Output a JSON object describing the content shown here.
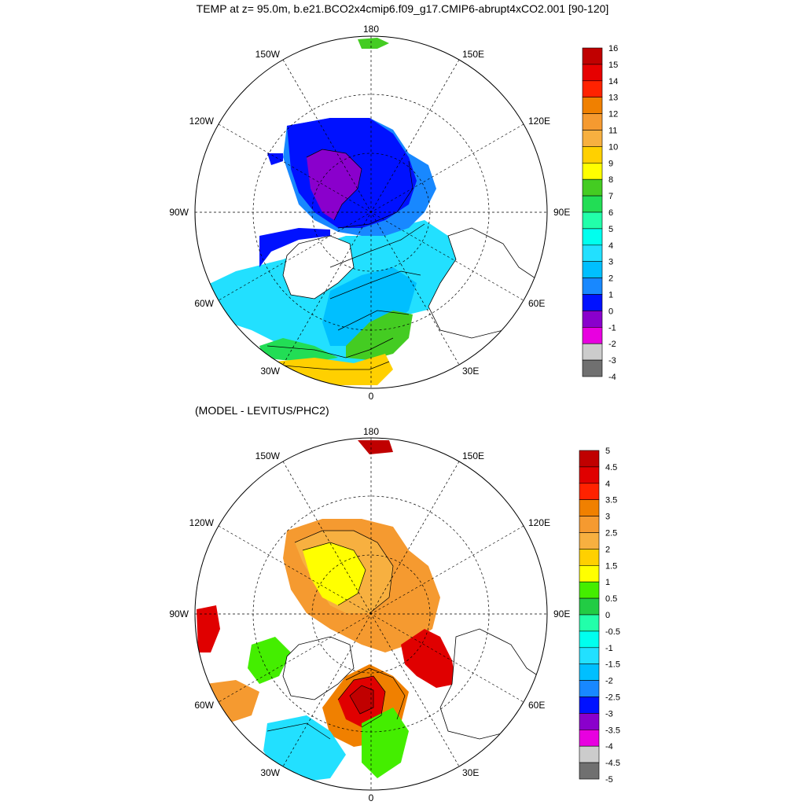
{
  "title": "TEMP at z=  95.0m, b.e21.BCO2x4cmip6.f09_g17.CMIP6-abrupt4xCO2.001 [90-120]",
  "subtitle": "(MODEL - LEVITUS/PHC2)",
  "longitude_labels": {
    "top": "180",
    "bottom": "0",
    "left": "90W",
    "right": "90E",
    "upper_left_a": "150W",
    "upper_left_b": "120W",
    "upper_right_a": "150E",
    "upper_right_b": "120E",
    "lower_left": "60W",
    "lower_left_b": "30W",
    "lower_right": "60E",
    "lower_right_b": "30E"
  },
  "colorbar_top": {
    "labels": [
      "16",
      "15",
      "14",
      "13",
      "12",
      "11",
      "10",
      "9",
      "8",
      "7",
      "6",
      "5",
      "4",
      "3",
      "2",
      "1",
      "0",
      "-1",
      "-2",
      "-3",
      "-4"
    ],
    "colors": [
      "#c00000",
      "#e60000",
      "#ff2200",
      "#f08000",
      "#f59a30",
      "#f7b040",
      "#ffd000",
      "#ffff00",
      "#44cc22",
      "#22dd55",
      "#22ffaa",
      "#00ffee",
      "#22e0ff",
      "#00bfff",
      "#1888ff",
      "#0011ff",
      "#8a00cc",
      "#e800e0",
      "#cccccc",
      "#707070"
    ]
  },
  "colorbar_bottom": {
    "labels": [
      "5",
      "4.5",
      "4",
      "3.5",
      "3",
      "2.5",
      "2",
      "1.5",
      "1",
      "0.5",
      "0",
      "-0.5",
      "-1",
      "-1.5",
      "-2",
      "-2.5",
      "-3",
      "-3.5",
      "-4",
      "-4.5",
      "-5"
    ],
    "colors": [
      "#c00000",
      "#e00000",
      "#ff2200",
      "#f08000",
      "#f59a30",
      "#f7b040",
      "#ffd000",
      "#ffff00",
      "#44ee00",
      "#22cc44",
      "#22ffaa",
      "#00ffee",
      "#22e0ff",
      "#00bfff",
      "#1888ff",
      "#0011ff",
      "#8a00cc",
      "#e800e0",
      "#cccccc",
      "#707070"
    ]
  }
}
